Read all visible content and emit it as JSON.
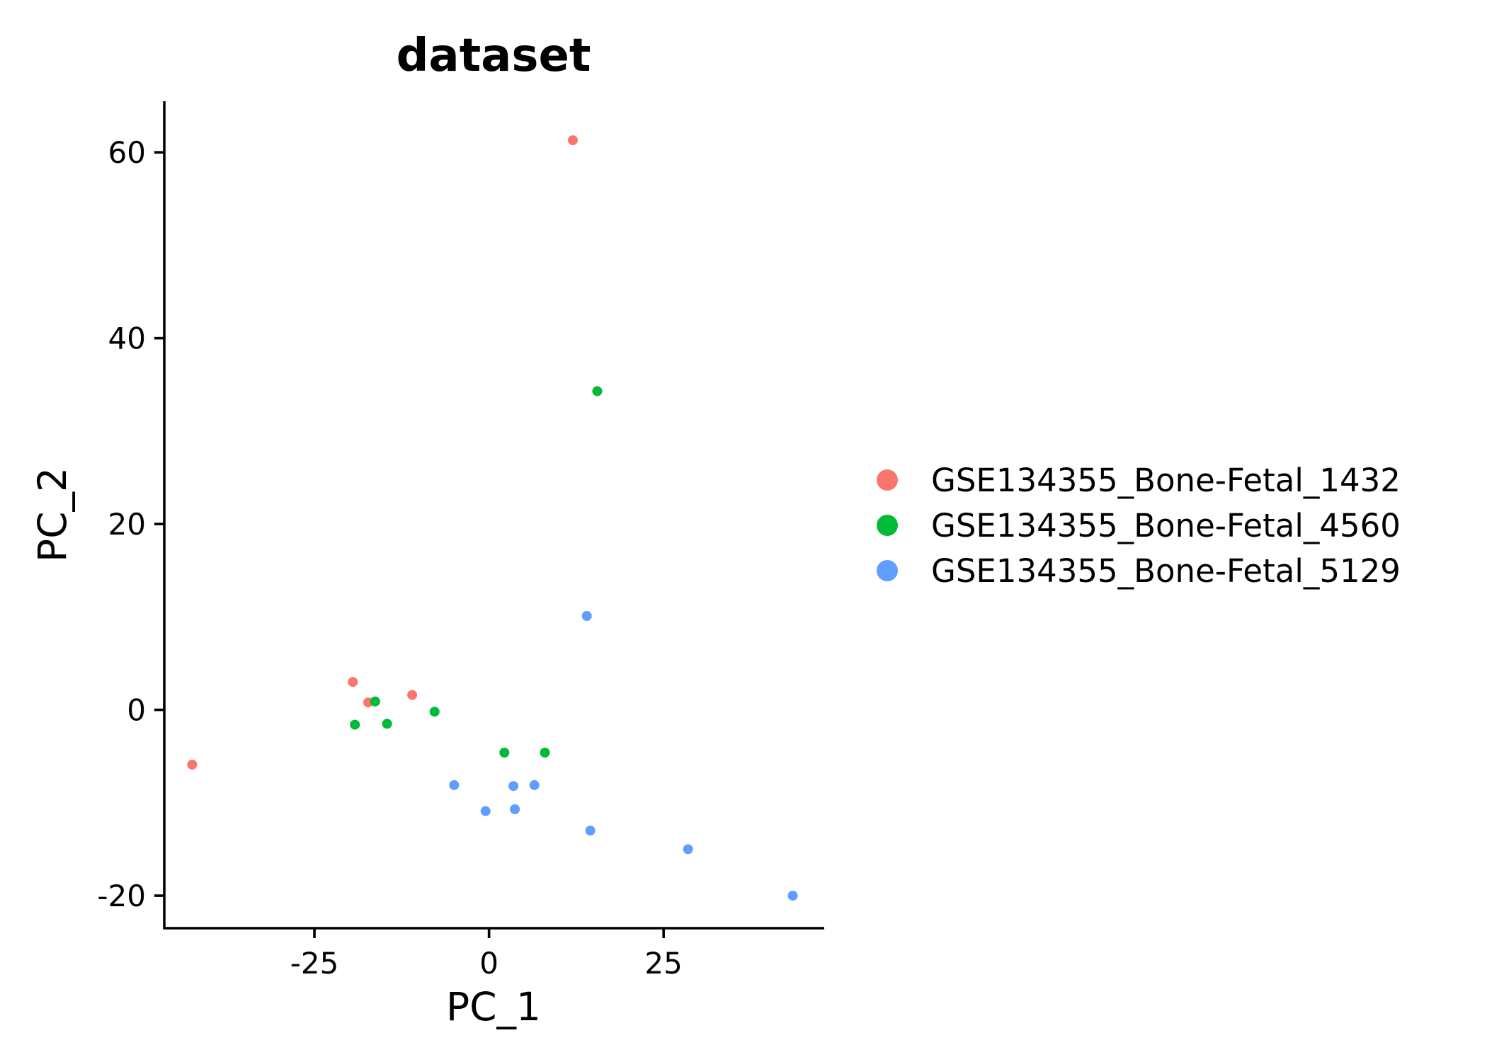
{
  "chart_data": {
    "type": "scatter",
    "title": "dataset",
    "xlabel": "PC_1",
    "ylabel": "PC_2",
    "xlim": [
      -46.5,
      48
    ],
    "ylim": [
      -23.5,
      65.5
    ],
    "x_ticks": [
      -25,
      0,
      25
    ],
    "y_ticks": [
      -20,
      0,
      20,
      40,
      60
    ],
    "x_tick_labels": [
      "-25",
      "0",
      "25"
    ],
    "y_tick_labels": [
      "-20",
      "0",
      "20",
      "40",
      "60"
    ],
    "grid": false,
    "legend_position": "right",
    "series": [
      {
        "name": "GSE134355_Bone-Fetal_1432",
        "color": "#F8766D",
        "points": [
          [
            12,
            61.3
          ],
          [
            -19.5,
            3
          ],
          [
            -17.3,
            0.8
          ],
          [
            -11,
            1.6
          ],
          [
            -42.5,
            -5.9
          ]
        ]
      },
      {
        "name": "GSE134355_Bone-Fetal_4560",
        "color": "#00BA38",
        "points": [
          [
            15.5,
            34.3
          ],
          [
            -16.3,
            0.9
          ],
          [
            -19.2,
            -1.6
          ],
          [
            -14.6,
            -1.5
          ],
          [
            -7.8,
            -0.2
          ],
          [
            2.2,
            -4.6
          ],
          [
            8,
            -4.6
          ]
        ]
      },
      {
        "name": "GSE134355_Bone-Fetal_5129",
        "color": "#619CFF",
        "points": [
          [
            14,
            10.1
          ],
          [
            -5,
            -8.1
          ],
          [
            3.5,
            -8.2
          ],
          [
            6.5,
            -8.1
          ],
          [
            -0.5,
            -10.9
          ],
          [
            3.7,
            -10.7
          ],
          [
            14.5,
            -13
          ],
          [
            28.5,
            -15
          ],
          [
            43.5,
            -20
          ]
        ]
      }
    ]
  }
}
